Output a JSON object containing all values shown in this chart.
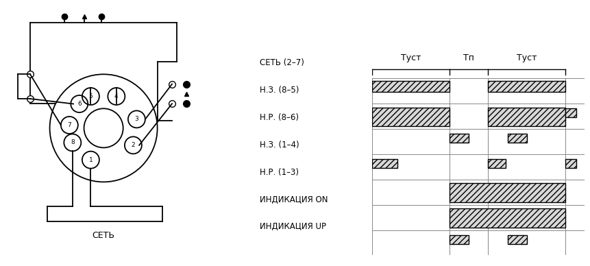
{
  "bg_color": "#ffffff",
  "diagram_labels": [
    "СЕТЬ (2–7)",
    "Н.З. (8–5)",
    "Н.Р. (8–6)",
    "Н.З. (1–4)",
    "Н.Р. (1–3)",
    "ИНДИКАЦИЯ ON",
    "ИНДИКАЦИЯ UP"
  ],
  "time_labels": [
    "Туст",
    "Тп",
    "Туст"
  ],
  "lw": 1.3,
  "color": "#000000",
  "hatch": "////",
  "hatch_fc": "#d8d8d8",
  "grid_color": "#888888"
}
